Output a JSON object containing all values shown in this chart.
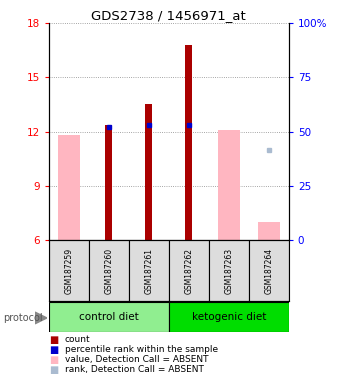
{
  "title": "GDS2738 / 1456971_at",
  "samples": [
    "GSM187259",
    "GSM187260",
    "GSM187261",
    "GSM187262",
    "GSM187263",
    "GSM187264"
  ],
  "groups": [
    {
      "name": "control diet",
      "samples": [
        0,
        1,
        2
      ],
      "color": "#90EE90"
    },
    {
      "name": "ketogenic diet",
      "samples": [
        3,
        4,
        5
      ],
      "color": "#00DD00"
    }
  ],
  "ylim_left": [
    6,
    18
  ],
  "ylim_right": [
    0,
    100
  ],
  "yticks_left": [
    6,
    9,
    12,
    15,
    18
  ],
  "yticks_right": [
    0,
    25,
    50,
    75,
    100
  ],
  "ytick_labels_right": [
    "0",
    "25",
    "50",
    "75",
    "100%"
  ],
  "red_bars": [
    null,
    12.35,
    13.5,
    16.8,
    null,
    null
  ],
  "red_bar_base": 6,
  "pink_bars": [
    11.8,
    null,
    null,
    null,
    12.1,
    7.0
  ],
  "pink_bar_base": 6,
  "blue_squares": [
    null,
    12.25,
    12.35,
    12.35,
    null,
    null
  ],
  "light_blue_square": [
    null,
    null,
    null,
    null,
    null,
    11.0
  ],
  "red_color": "#AA0000",
  "pink_color": "#FFB6C1",
  "blue_color": "#0000CC",
  "light_blue_color": "#AABBD0",
  "grid_color": "#888888",
  "bg_color": "#FFFFFF",
  "legend": [
    {
      "color": "#AA0000",
      "label": "count"
    },
    {
      "color": "#0000CC",
      "label": "percentile rank within the sample"
    },
    {
      "color": "#FFB6C1",
      "label": "value, Detection Call = ABSENT"
    },
    {
      "color": "#AABBD0",
      "label": "rank, Detection Call = ABSENT"
    }
  ],
  "protocol_label": "protocol",
  "label_area_bg": "#CCCCCC"
}
